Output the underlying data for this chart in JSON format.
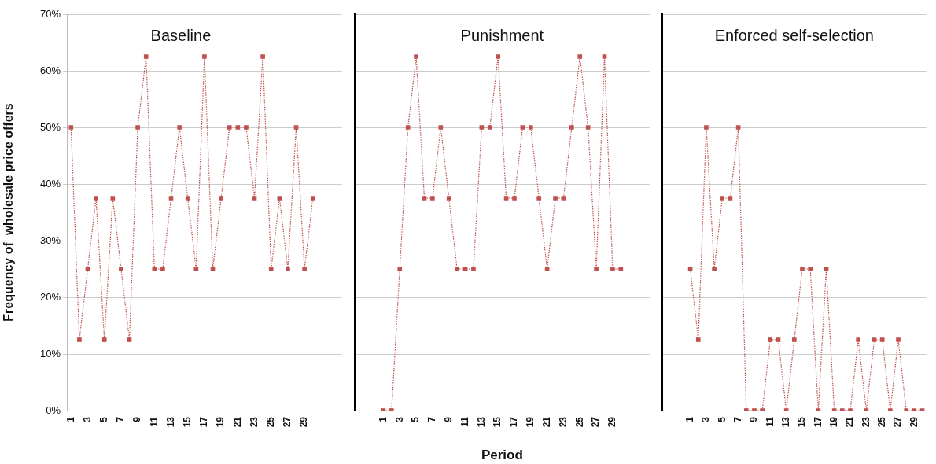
{
  "chart_data": [
    {
      "type": "line",
      "title": "Baseline",
      "ylabel": "Frequency of  wholesale price offers",
      "categories": [
        "1",
        null,
        "3",
        null,
        "5",
        null,
        "7",
        null,
        "9",
        null,
        "11",
        null,
        "13",
        null,
        "15",
        null,
        "17",
        null,
        "19",
        null,
        "21",
        null,
        "23",
        null,
        "25",
        null,
        "27",
        null,
        "29",
        null,
        null,
        null,
        null
      ],
      "values": [
        50,
        12.5,
        25,
        37.5,
        12.5,
        37.5,
        25,
        12.5,
        50,
        62.5,
        25,
        25,
        37.5,
        50,
        37.5,
        25,
        62.5,
        25,
        37.5,
        50,
        50,
        50,
        37.5,
        62.5,
        25,
        37.5,
        25,
        50,
        25,
        37.5,
        null,
        null,
        null
      ],
      "color": "#c0504d",
      "ylim": [
        0,
        70
      ],
      "yticks": [
        {
          "value": 0,
          "label": "0%"
        },
        {
          "value": 10,
          "label": "10%"
        },
        {
          "value": 20,
          "label": "20%"
        },
        {
          "value": 30,
          "label": "30%"
        },
        {
          "value": 40,
          "label": "40%"
        },
        {
          "value": 50,
          "label": "50%"
        },
        {
          "value": 60,
          "label": "60%"
        },
        {
          "value": 70,
          "label": "70%"
        }
      ],
      "grid": "y",
      "marker": "square",
      "line_style": "dotted"
    },
    {
      "type": "line",
      "title": "Punishment",
      "xlabel": "Period",
      "categories": [
        null,
        null,
        null,
        "1",
        null,
        "3",
        null,
        "5",
        null,
        "7",
        null,
        "9",
        null,
        "11",
        null,
        "13",
        null,
        "15",
        null,
        "17",
        null,
        "19",
        null,
        "21",
        null,
        "23",
        null,
        "25",
        null,
        "27",
        null,
        "29",
        null,
        null,
        null,
        null
      ],
      "values": [
        null,
        null,
        null,
        0,
        0,
        25,
        50,
        62.5,
        37.5,
        37.5,
        50,
        37.5,
        25,
        25,
        25,
        50,
        50,
        62.5,
        37.5,
        37.5,
        50,
        50,
        37.5,
        25,
        37.5,
        37.5,
        50,
        62.5,
        50,
        25,
        62.5,
        25,
        25,
        null,
        null,
        null
      ],
      "color": "#c0504d",
      "ylim": [
        0,
        70
      ],
      "yticks": [
        0,
        10,
        20,
        30,
        40,
        50,
        60,
        70
      ],
      "grid": "y",
      "marker": "square",
      "line_style": "dotted",
      "tick_labels": "x"
    },
    {
      "type": "line",
      "title": "Enforced self-selection",
      "categories": [
        null,
        null,
        null,
        "1",
        null,
        "3",
        null,
        "5",
        null,
        "7",
        null,
        "9",
        null,
        "11",
        null,
        "13",
        null,
        "15",
        null,
        "17",
        null,
        "19",
        null,
        "21",
        null,
        "23",
        null,
        "25",
        null,
        "27",
        null,
        "29",
        null
      ],
      "values": [
        null,
        null,
        null,
        25,
        12.5,
        50,
        25,
        37.5,
        37.5,
        50,
        0,
        0,
        0,
        12.5,
        12.5,
        0,
        12.5,
        25,
        25,
        0,
        25,
        0,
        0,
        0,
        12.5,
        0,
        12.5,
        12.5,
        0,
        12.5,
        0,
        0,
        0
      ],
      "color": "#c0504d",
      "ylim": [
        0,
        70
      ],
      "yticks": [
        0,
        10,
        20,
        30,
        40,
        50,
        60,
        70
      ],
      "grid": "y",
      "marker": "square",
      "line_style": "dotted",
      "tick_labels": "x"
    }
  ]
}
